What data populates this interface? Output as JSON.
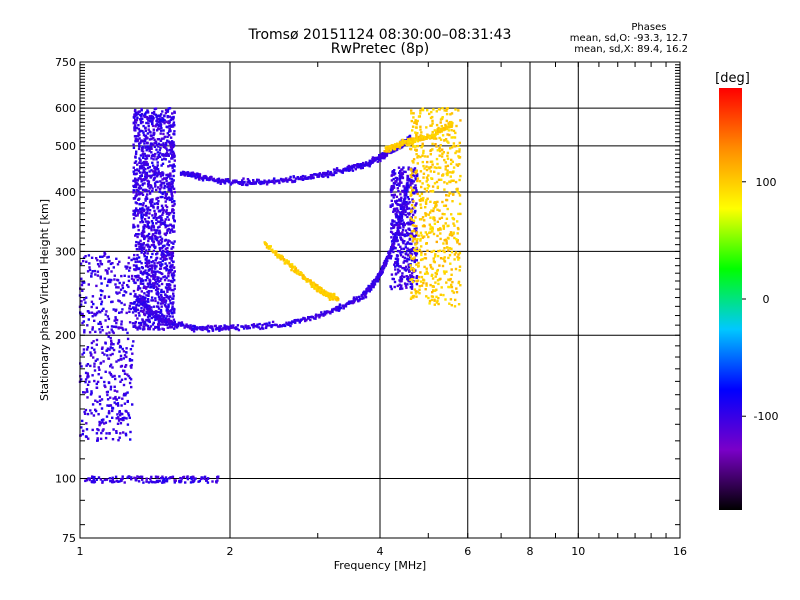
{
  "title": "Tromsø 20151124 08:30:00–08:31:43",
  "subtitle": "RwPretec (8p)",
  "phases": {
    "label": "Phases",
    "line_o": "mean, sd,O: -93.3, 12.7",
    "line_x": "mean, sd,X:  89.4, 16.2"
  },
  "chart_data": {
    "type": "scatter",
    "xlabel": "Frequency [MHz]",
    "ylabel": "Stationary phase Virtual Height [km]",
    "xscale": "log",
    "yscale": "log",
    "xlim": [
      1,
      16
    ],
    "ylim": [
      75,
      750
    ],
    "xticks": [
      1,
      2,
      4,
      6,
      8,
      10,
      16
    ],
    "yticks": [
      75,
      100,
      200,
      300,
      400,
      500,
      600,
      750
    ],
    "grid": true,
    "colorbar": {
      "label": "[deg]",
      "min": -180,
      "max": 180,
      "ticks": [
        -100,
        0,
        100
      ],
      "colors": [
        "#000000",
        "#7a00c8",
        "#0000ff",
        "#00c8ff",
        "#00ff00",
        "#ffff00",
        "#ff8c00",
        "#ff0000"
      ]
    },
    "series": [
      {
        "trace": "o-mode-bulk",
        "x_range": [
          1.28,
          1.55
        ],
        "y_range": [
          205,
          600
        ],
        "points": 1500,
        "phase": -100
      },
      {
        "trace": "o-mode-main-trace",
        "x": [
          1.3,
          1.45,
          1.7,
          2.0,
          2.6,
          3.2,
          3.7,
          3.95,
          4.15,
          4.35,
          4.55
        ],
        "y": [
          240,
          215,
          207,
          207,
          211,
          224,
          242,
          262,
          290,
          330,
          420
        ],
        "phase": -100
      },
      {
        "trace": "o-mode-cusp-column",
        "x_range": [
          4.2,
          4.75
        ],
        "y_range": [
          250,
          450
        ],
        "points": 450,
        "phase": -100
      },
      {
        "trace": "upper-trace",
        "x": [
          1.6,
          1.75,
          2.0,
          2.4,
          2.9,
          3.4,
          3.8,
          4.1,
          4.4,
          4.6
        ],
        "y": [
          440,
          430,
          420,
          420,
          430,
          445,
          460,
          480,
          500,
          520
        ],
        "phase": -100
      },
      {
        "trace": "low-frequency-scatter",
        "x_range": [
          1.0,
          1.28
        ],
        "y_range": [
          120,
          300
        ],
        "points": 500,
        "phase": -100
      },
      {
        "trace": "sporadic-e-line",
        "x_range": [
          1.02,
          1.9
        ],
        "y_range": [
          98,
          101
        ],
        "points": 140,
        "phase": -100
      },
      {
        "trace": "x-mode-column",
        "x_range": [
          4.6,
          5.8
        ],
        "y_range": [
          230,
          600
        ],
        "points": 600,
        "phase": 100
      },
      {
        "trace": "x-mode-arc",
        "x": [
          2.35,
          2.6,
          2.9,
          3.1,
          3.3
        ],
        "y": [
          312,
          285,
          258,
          245,
          238
        ],
        "phase": 100
      },
      {
        "trace": "x-mode-upper",
        "x": [
          4.1,
          4.4,
          4.7,
          5.1,
          5.6
        ],
        "y": [
          490,
          505,
          515,
          525,
          560
        ],
        "phase": 100
      }
    ]
  }
}
